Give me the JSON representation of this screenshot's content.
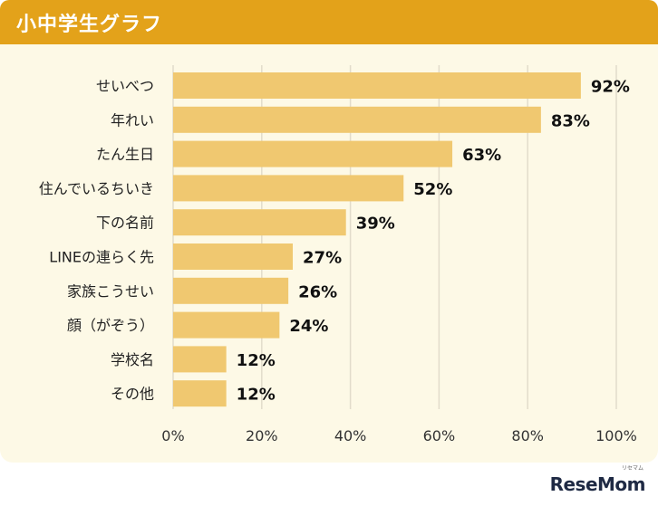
{
  "header": {
    "title": "小中学生グラフ"
  },
  "colors": {
    "header": "#e3a21a",
    "panel": "#fdf9e6",
    "bar": "#f0c870",
    "grid": "#e2dccb"
  },
  "brand": {
    "logo": "ReseMom",
    "logo_sub": "リセマム"
  },
  "chart_data": {
    "type": "bar",
    "orientation": "horizontal",
    "categories": [
      "せいべつ",
      "年れい",
      "たん生日",
      "住んでいるちいき",
      "下の名前",
      "LINEの連らく先",
      "家族こうせい",
      "顔（がぞう）",
      "学校名",
      "その他"
    ],
    "values": [
      92,
      83,
      63,
      52,
      39,
      27,
      26,
      24,
      12,
      12
    ],
    "value_labels": [
      "92%",
      "83%",
      "63%",
      "52%",
      "39%",
      "27%",
      "26%",
      "24%",
      "12%",
      "12%"
    ],
    "xlim": [
      0,
      100
    ],
    "xticks": [
      0,
      20,
      40,
      60,
      80,
      100
    ],
    "xtick_labels": [
      "0%",
      "20%",
      "40%",
      "60%",
      "80%",
      "100%"
    ],
    "grid": true
  }
}
